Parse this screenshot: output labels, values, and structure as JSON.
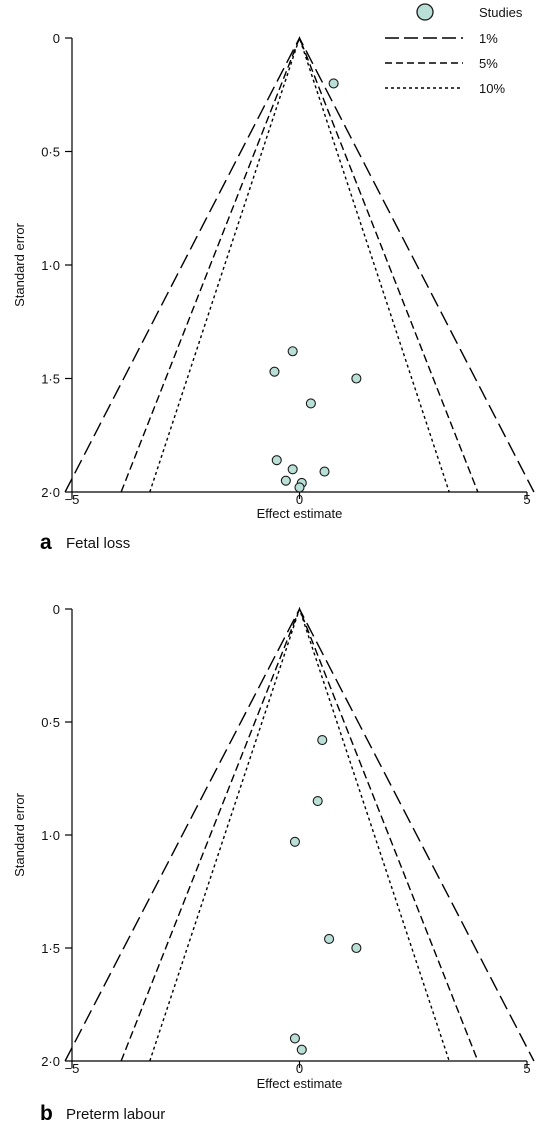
{
  "legend": {
    "entries": [
      {
        "label": "Studies",
        "kind": "marker"
      },
      {
        "label": "1%",
        "kind": "line",
        "dash": "long"
      },
      {
        "label": "5%",
        "kind": "line",
        "dash": "medium"
      },
      {
        "label": "10%",
        "kind": "line",
        "dash": "short"
      }
    ]
  },
  "colors": {
    "marker_fill": "#b9dfd7",
    "marker_stroke": "#1a1a1a",
    "line": "#000000"
  },
  "chart_data": [
    {
      "type": "scatter",
      "panel_letter": "a",
      "title": "Fetal loss",
      "xlabel": "Effect estimate",
      "ylabel": "Standard error",
      "xlim": [
        -5,
        5
      ],
      "ylim": [
        0,
        2.0
      ],
      "y_inverted": true,
      "xticks": [
        "−5",
        "0",
        "5"
      ],
      "yticks": [
        "0",
        "0·5",
        "1·0",
        "1·5",
        "2·0"
      ],
      "contours": [
        {
          "level": "1%",
          "z": 2.576
        },
        {
          "level": "5%",
          "z": 1.96
        },
        {
          "level": "10%",
          "z": 1.645
        }
      ],
      "points": [
        {
          "x": 0.75,
          "y": 0.2
        },
        {
          "x": -0.15,
          "y": 1.38
        },
        {
          "x": -0.55,
          "y": 1.47
        },
        {
          "x": 1.25,
          "y": 1.5
        },
        {
          "x": 0.25,
          "y": 1.61
        },
        {
          "x": -0.5,
          "y": 1.86
        },
        {
          "x": -0.15,
          "y": 1.9
        },
        {
          "x": 0.55,
          "y": 1.91
        },
        {
          "x": -0.3,
          "y": 1.95
        },
        {
          "x": 0.05,
          "y": 1.96
        },
        {
          "x": 0.0,
          "y": 1.98
        }
      ]
    },
    {
      "type": "scatter",
      "panel_letter": "b",
      "title": "Preterm labour",
      "xlabel": "Effect estimate",
      "ylabel": "Standard error",
      "xlim": [
        -5,
        5
      ],
      "ylim": [
        0,
        2.0
      ],
      "y_inverted": true,
      "xticks": [
        "−5",
        "0",
        "5"
      ],
      "yticks": [
        "0",
        "0·5",
        "1·0",
        "1·5",
        "2·0"
      ],
      "contours": [
        {
          "level": "1%",
          "z": 2.576
        },
        {
          "level": "5%",
          "z": 1.96
        },
        {
          "level": "10%",
          "z": 1.645
        }
      ],
      "points": [
        {
          "x": 0.5,
          "y": 0.58
        },
        {
          "x": 0.4,
          "y": 0.85
        },
        {
          "x": -0.1,
          "y": 1.03
        },
        {
          "x": 0.65,
          "y": 1.46
        },
        {
          "x": 1.25,
          "y": 1.5
        },
        {
          "x": -0.1,
          "y": 1.9
        },
        {
          "x": 0.05,
          "y": 1.95
        }
      ]
    }
  ]
}
